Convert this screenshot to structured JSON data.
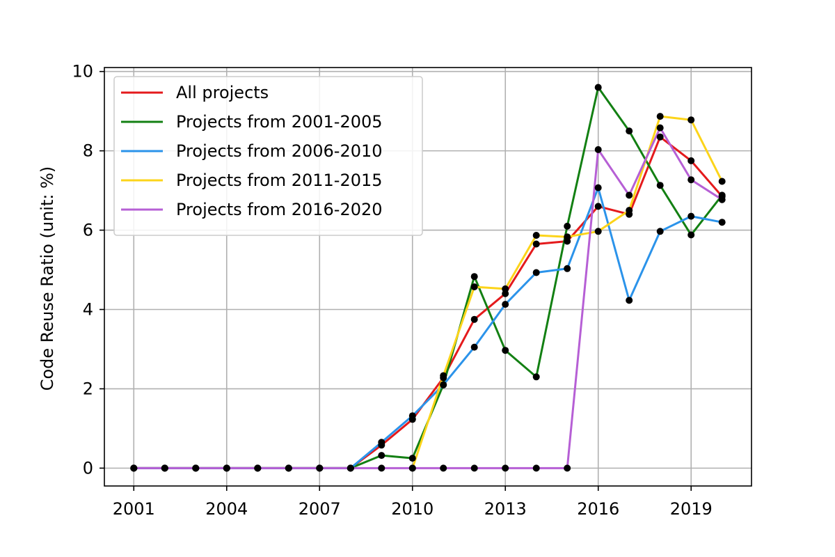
{
  "chart_data": {
    "type": "line",
    "title": "",
    "xlabel": "",
    "ylabel": "Code Reuse Ratio (unit: %)",
    "x": [
      2001,
      2002,
      2003,
      2004,
      2005,
      2006,
      2007,
      2008,
      2009,
      2010,
      2011,
      2012,
      2013,
      2014,
      2015,
      2016,
      2017,
      2018,
      2019,
      2020
    ],
    "xticks": [
      2001,
      2004,
      2007,
      2010,
      2013,
      2016,
      2019
    ],
    "yticks": [
      0,
      2,
      4,
      6,
      8,
      10
    ],
    "xlim": [
      2000.05,
      2020.95
    ],
    "ylim": [
      -0.45,
      10.1
    ],
    "grid": true,
    "legend_position": "upper-left",
    "series": [
      {
        "name": "All projects",
        "color": "#e41a1c",
        "x": [
          2001,
          2002,
          2003,
          2004,
          2005,
          2006,
          2007,
          2008,
          2009,
          2010,
          2011,
          2012,
          2013,
          2014,
          2015,
          2016,
          2017,
          2018,
          2019,
          2020
        ],
        "values": [
          0,
          0,
          0,
          0,
          0,
          0,
          0,
          0,
          0.58,
          1.23,
          2.28,
          3.75,
          4.4,
          5.65,
          5.72,
          6.6,
          6.4,
          8.35,
          7.75,
          6.85
        ]
      },
      {
        "name": "Projects from 2001-2005",
        "color": "#138013",
        "x": [
          2001,
          2002,
          2003,
          2004,
          2005,
          2006,
          2007,
          2008,
          2009,
          2010,
          2011,
          2012,
          2013,
          2014,
          2015,
          2016,
          2017,
          2018,
          2019,
          2020
        ],
        "values": [
          0,
          0,
          0,
          0,
          0,
          0,
          0,
          0,
          0.32,
          0.25,
          2.1,
          4.83,
          2.97,
          2.3,
          6.1,
          9.6,
          8.5,
          7.13,
          5.88,
          6.88
        ]
      },
      {
        "name": "Projects from 2006-2010",
        "color": "#2b93ea",
        "x": [
          2001,
          2002,
          2003,
          2004,
          2005,
          2006,
          2007,
          2008,
          2009,
          2010,
          2011,
          2012,
          2013,
          2014,
          2015,
          2016,
          2017,
          2018,
          2019,
          2020
        ],
        "values": [
          0,
          0,
          0,
          0,
          0,
          0,
          0,
          0,
          0.65,
          1.32,
          2.1,
          3.05,
          4.13,
          4.93,
          5.03,
          7.07,
          4.23,
          5.97,
          6.35,
          6.2
        ]
      },
      {
        "name": "Projects from 2011-2015",
        "color": "#fcd41a",
        "x": [
          2010,
          2011,
          2012,
          2013,
          2014,
          2015,
          2016,
          2017,
          2018,
          2019,
          2020
        ],
        "values": [
          0,
          2.33,
          4.57,
          4.52,
          5.87,
          5.83,
          5.97,
          6.5,
          8.87,
          8.78,
          7.23
        ]
      },
      {
        "name": "Projects from 2016-2020",
        "color": "#b65fd5",
        "x": [
          2001,
          2002,
          2003,
          2004,
          2005,
          2006,
          2007,
          2008,
          2009,
          2010,
          2011,
          2012,
          2013,
          2014,
          2015,
          2016,
          2017,
          2018,
          2019,
          2020
        ],
        "values": [
          0,
          0,
          0,
          0,
          0,
          0,
          0,
          0,
          0,
          0,
          0,
          0,
          0,
          0,
          0,
          8.03,
          6.88,
          8.58,
          7.27,
          6.77
        ]
      }
    ]
  }
}
